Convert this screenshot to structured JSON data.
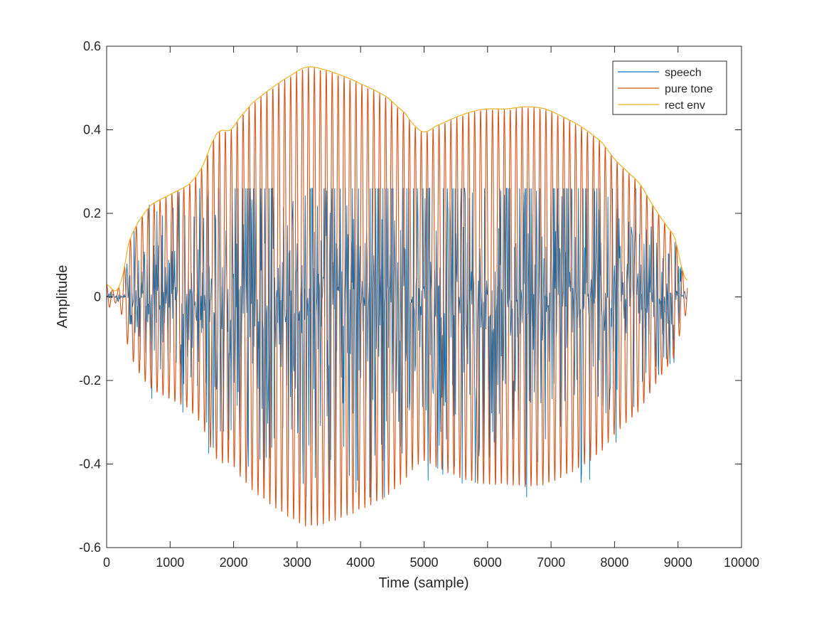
{
  "chart_data": {
    "type": "line",
    "title": "",
    "xlabel": "Time (sample)",
    "ylabel": "Amplitude",
    "xlim": [
      0,
      10000
    ],
    "ylim": [
      -0.6,
      0.6
    ],
    "xticks": [
      "0",
      "1000",
      "2000",
      "3000",
      "4000",
      "5000",
      "6000",
      "7000",
      "8000",
      "9000",
      "10000"
    ],
    "yticks": [
      "0.6",
      "0.4",
      "0.2",
      "0",
      "-0.2",
      "-0.4",
      "-0.6"
    ],
    "xtick_values": [
      0,
      1000,
      2000,
      3000,
      4000,
      5000,
      6000,
      7000,
      8000,
      9000,
      10000
    ],
    "ytick_values": [
      0.6,
      0.4,
      0.2,
      0,
      -0.2,
      -0.4,
      -0.6
    ],
    "grid": false,
    "legend_position": "top-right",
    "sample_count": 9150,
    "envelope_knots": {
      "x": [
        0,
        150,
        250,
        350,
        500,
        700,
        1000,
        1300,
        1500,
        1700,
        1800,
        1950,
        2100,
        2300,
        2600,
        2900,
        3150,
        3400,
        3700,
        4000,
        4400,
        4700,
        4850,
        5000,
        5200,
        5500,
        5800,
        6000,
        6300,
        6600,
        6900,
        7200,
        7500,
        7800,
        8000,
        8200,
        8400,
        8600,
        8800,
        8950,
        9080,
        9150
      ],
      "y": [
        0.03,
        0.015,
        0.05,
        0.13,
        0.18,
        0.22,
        0.245,
        0.27,
        0.31,
        0.38,
        0.398,
        0.4,
        0.43,
        0.465,
        0.5,
        0.53,
        0.55,
        0.545,
        0.53,
        0.51,
        0.48,
        0.44,
        0.41,
        0.395,
        0.41,
        0.43,
        0.445,
        0.45,
        0.45,
        0.455,
        0.45,
        0.43,
        0.405,
        0.37,
        0.33,
        0.3,
        0.27,
        0.22,
        0.175,
        0.14,
        0.06,
        0.04
      ]
    },
    "tone_period_samples": 93.5,
    "series": [
      {
        "name": "speech",
        "color": "#0072BD",
        "kind": "speech-waveform",
        "peak_amplitude": 0.26
      },
      {
        "name": "pure tone",
        "color": "#D95319",
        "kind": "amplitude-modulated-sine"
      },
      {
        "name": "rect env",
        "color": "#EDB120",
        "kind": "envelope"
      }
    ]
  }
}
